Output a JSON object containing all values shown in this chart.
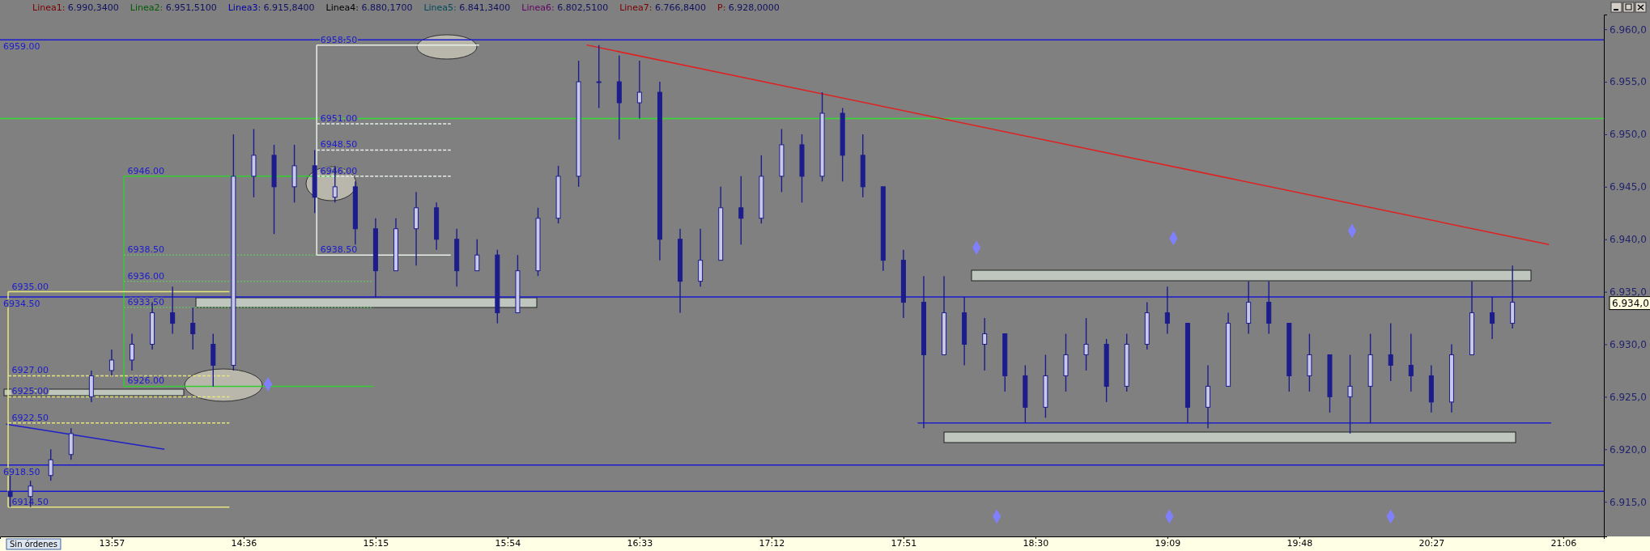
{
  "chart_data": {
    "type": "candlestick",
    "color": "#1c1c8c",
    "x": [
      13.45,
      13.55,
      13.65,
      13.75,
      13.85,
      13.95,
      14.05,
      14.15,
      14.25,
      14.35,
      14.45,
      14.55,
      14.65,
      14.75,
      14.85,
      14.95,
      15.05,
      15.15,
      15.25,
      15.35,
      15.45,
      15.55,
      15.65,
      15.75,
      15.85,
      15.95,
      16.05,
      16.15,
      16.25,
      16.35,
      16.45,
      16.55,
      16.65,
      16.75,
      16.85,
      16.95,
      17.05,
      17.15,
      17.25,
      17.35,
      17.45,
      17.55,
      17.65,
      17.75,
      17.85,
      17.95,
      18.05,
      18.15,
      18.25,
      18.35,
      18.45,
      18.55,
      18.65,
      18.75,
      18.85,
      18.95,
      19.05,
      19.15,
      19.25,
      19.35,
      19.45,
      19.55,
      19.65,
      19.75,
      19.85,
      19.95,
      20.05,
      20.15,
      20.25,
      20.35,
      20.45,
      20.55,
      20.65,
      20.75,
      20.85
    ],
    "ohlc": [
      [
        6916,
        6917.5,
        6914.5,
        6915.5
      ],
      [
        6915.5,
        6917,
        6914.5,
        6916.5
      ],
      [
        6917.5,
        6920,
        6917,
        6919
      ],
      [
        6919.5,
        6922,
        6919,
        6921.5
      ],
      [
        6925,
        6927.5,
        6924.5,
        6927
      ],
      [
        6927.5,
        6929.5,
        6927,
        6928.5
      ],
      [
        6928.5,
        6931,
        6927.5,
        6930
      ],
      [
        6930,
        6934,
        6929.5,
        6933
      ],
      [
        6933,
        6935.5,
        6931,
        6932
      ],
      [
        6932,
        6933.5,
        6929.5,
        6931
      ],
      [
        6930,
        6931,
        6926,
        6928
      ],
      [
        6928,
        6950,
        6927.5,
        6946
      ],
      [
        6946,
        6950.5,
        6944,
        6948
      ],
      [
        6948,
        6949,
        6940.5,
        6945
      ],
      [
        6945,
        6949,
        6943.5,
        6947
      ],
      [
        6947,
        6948.5,
        6942.5,
        6944
      ],
      [
        6944,
        6947,
        6943.5,
        6945
      ],
      [
        6945,
        6945.5,
        6939.5,
        6941
      ],
      [
        6941,
        6942,
        6934.5,
        6937
      ],
      [
        6937,
        6942,
        6937,
        6941
      ],
      [
        6941,
        6944.5,
        6937.5,
        6943
      ],
      [
        6943,
        6943.5,
        6939,
        6940
      ],
      [
        6940,
        6941,
        6935.5,
        6937
      ],
      [
        6937,
        6940,
        6937,
        6938.5
      ],
      [
        6938.5,
        6939,
        6932,
        6933
      ],
      [
        6933,
        6938.5,
        6933,
        6937
      ],
      [
        6937,
        6943,
        6936.5,
        6942
      ],
      [
        6942,
        6947,
        6941.5,
        6946
      ],
      [
        6946,
        6957,
        6945,
        6955
      ],
      [
        6955,
        6958.5,
        6952.5,
        6955
      ],
      [
        6955,
        6957.5,
        6949.5,
        6953
      ],
      [
        6953,
        6957,
        6951.5,
        6954
      ],
      [
        6954,
        6955,
        6938,
        6940
      ],
      [
        6940,
        6941,
        6933,
        6936
      ],
      [
        6936,
        6941,
        6935.5,
        6938
      ],
      [
        6938,
        6945,
        6938,
        6943
      ],
      [
        6943,
        6946,
        6939.5,
        6942
      ],
      [
        6942,
        6948,
        6941.5,
        6946
      ],
      [
        6946,
        6950.5,
        6944.5,
        6949
      ],
      [
        6949,
        6950,
        6943.5,
        6946
      ],
      [
        6946,
        6954,
        6945.5,
        6952
      ],
      [
        6952,
        6952.5,
        6945.5,
        6948
      ],
      [
        6948,
        6950,
        6944,
        6945
      ],
      [
        6945,
        6945,
        6937,
        6938
      ],
      [
        6938,
        6939,
        6932.5,
        6934
      ],
      [
        6934,
        6936.5,
        6922,
        6929
      ],
      [
        6929,
        6936.5,
        6929,
        6933
      ],
      [
        6933,
        6934.5,
        6928,
        6930
      ],
      [
        6930,
        6932.5,
        6927.5,
        6931
      ],
      [
        6931,
        6931,
        6925.5,
        6927
      ],
      [
        6927,
        6928,
        6922.5,
        6924
      ],
      [
        6924,
        6929,
        6923,
        6927
      ],
      [
        6927,
        6931,
        6925.5,
        6929
      ],
      [
        6929,
        6932.5,
        6927.5,
        6930
      ],
      [
        6930,
        6930.5,
        6924.5,
        6926
      ],
      [
        6926,
        6931,
        6925.5,
        6930
      ],
      [
        6930,
        6934,
        6929.5,
        6933
      ],
      [
        6933,
        6935.5,
        6931,
        6932
      ],
      [
        6932,
        6932,
        6922.5,
        6924
      ],
      [
        6924,
        6928,
        6922,
        6926
      ],
      [
        6926,
        6933,
        6926,
        6932
      ],
      [
        6932,
        6936,
        6931,
        6934
      ],
      [
        6934,
        6936,
        6931,
        6932
      ],
      [
        6932,
        6932,
        6925.5,
        6927
      ],
      [
        6927,
        6931,
        6925.5,
        6929
      ],
      [
        6929,
        6929,
        6923.5,
        6925
      ],
      [
        6925,
        6929,
        6921.5,
        6926
      ],
      [
        6926,
        6931,
        6922.5,
        6929
      ],
      [
        6929,
        6932,
        6926.5,
        6928
      ],
      [
        6928,
        6931,
        6925.5,
        6927
      ],
      [
        6927,
        6928,
        6923.5,
        6924.5
      ],
      [
        6924.5,
        6930,
        6923.5,
        6929
      ],
      [
        6929,
        6936,
        6929,
        6933
      ],
      [
        6933,
        6934.5,
        6930.5,
        6932
      ],
      [
        6932,
        6937.5,
        6931.5,
        6934
      ]
    ],
    "series": [
      {
        "type": "line",
        "color": "#e02020",
        "x": [
          16.29,
          21.03
        ],
        "values": [
          6958.5,
          6939.5
        ]
      },
      {
        "type": "line",
        "color": "#2020c8",
        "x": [
          13.43,
          14.21
        ],
        "values": [
          6922.4,
          6920
        ]
      },
      {
        "type": "line",
        "color": "#2020c8",
        "x": [
          17.92,
          21.04
        ],
        "values": [
          6922.5,
          6922.5
        ]
      },
      {
        "type": "line",
        "color": "#33cc33",
        "x": [
          14.01,
          14.01
        ],
        "values": [
          6946,
          6926
        ]
      },
      {
        "type": "line",
        "color": "#33cc33",
        "x": [
          14.01,
          15.06
        ],
        "values": [
          6946,
          6946
        ]
      },
      {
        "type": "line",
        "color": "#66bb66",
        "line_style": "dotted",
        "x": [
          14.01,
          14.96
        ],
        "values": [
          6938.5,
          6938.5
        ]
      },
      {
        "type": "line",
        "color": "#66bb66",
        "line_style": "dotted",
        "x": [
          14.01,
          15.24
        ],
        "values": [
          6936,
          6936
        ]
      },
      {
        "type": "line",
        "color": "#66bb66",
        "line_style": "dotted",
        "x": [
          14.01,
          15.24
        ],
        "values": [
          6933.5,
          6933.5
        ]
      },
      {
        "type": "line",
        "color": "#33cc33",
        "x": [
          14.01,
          15.24
        ],
        "values": [
          6926,
          6926
        ]
      },
      {
        "type": "line",
        "color": "#e6e680",
        "x": [
          13.44,
          13.44
        ],
        "values": [
          6935,
          6914.5
        ]
      },
      {
        "type": "line",
        "color": "#e6e680",
        "x": [
          13.44,
          14.53
        ],
        "values": [
          6935,
          6935
        ]
      },
      {
        "type": "line",
        "color": "#e6e680",
        "line_style": "dashed",
        "x": [
          13.44,
          14.53
        ],
        "values": [
          6927,
          6927
        ]
      },
      {
        "type": "line",
        "color": "#e6e680",
        "line_style": "dashed",
        "x": [
          13.44,
          14.53
        ],
        "values": [
          6925,
          6925
        ]
      },
      {
        "type": "line",
        "color": "#e6e680",
        "line_style": "dashed",
        "x": [
          13.44,
          14.53
        ],
        "values": [
          6922.5,
          6922.5
        ]
      },
      {
        "type": "line",
        "color": "#e6e680",
        "x": [
          13.44,
          14.53
        ],
        "values": [
          6914.5,
          6914.5
        ]
      },
      {
        "type": "line",
        "color": "#e8f0e8",
        "x": [
          14.96,
          14.96
        ],
        "values": [
          6958.5,
          6938.5
        ]
      },
      {
        "type": "line",
        "color": "#e8f0e8",
        "x": [
          14.96,
          15.76
        ],
        "values": [
          6958.5,
          6958.5
        ]
      },
      {
        "type": "line",
        "color": "#e8f0e8",
        "line_style": "dashed",
        "x": [
          14.96,
          15.62
        ],
        "values": [
          6951,
          6951
        ]
      },
      {
        "type": "line",
        "color": "#e8f0e8",
        "line_style": "dashed",
        "x": [
          14.96,
          15.62
        ],
        "values": [
          6948.5,
          6948.5
        ]
      },
      {
        "type": "line",
        "color": "#e8f0e8",
        "line_style": "dashed",
        "x": [
          14.96,
          15.62
        ],
        "values": [
          6946,
          6946
        ]
      },
      {
        "type": "line",
        "color": "#e8f0e8",
        "x": [
          14.96,
          15.62
        ],
        "values": [
          6938.5,
          6938.5
        ]
      },
      {
        "type": "scatter",
        "color": "#8080ff",
        "marker": "diamond",
        "x": [
          14.72,
          18.21,
          19.18,
          20.06,
          18.31,
          19.16,
          20.25
        ],
        "values": [
          6926.2,
          6939.2,
          6940.1,
          6940.8,
          6913.6,
          6913.6,
          6913.6
        ]
      }
    ],
    "xlim": [
      13.4,
      21.3
    ],
    "ylim": [
      6911.7,
      6961.4
    ],
    "xticks": [
      {
        "value": 13.95,
        "label": "13:57"
      },
      {
        "value": 14.6,
        "label": "14:36"
      },
      {
        "value": 15.25,
        "label": "15:15"
      },
      {
        "value": 15.9,
        "label": "15:54"
      },
      {
        "value": 16.55,
        "label": "16:33"
      },
      {
        "value": 17.2,
        "label": "17:12"
      },
      {
        "value": 17.85,
        "label": "17:51"
      },
      {
        "value": 18.5,
        "label": "18:30"
      },
      {
        "value": 19.15,
        "label": "19:09"
      },
      {
        "value": 19.8,
        "label": "19:48"
      },
      {
        "value": 20.45,
        "label": "20:27"
      },
      {
        "value": 21.1,
        "label": "21:06"
      }
    ],
    "yticks": [
      {
        "value": 6915,
        "label": "6.915,0"
      },
      {
        "value": 6920,
        "label": "6.920,0"
      },
      {
        "value": 6925,
        "label": "6.925,0"
      },
      {
        "value": 6930,
        "label": "6.930,0"
      },
      {
        "value": 6935,
        "label": "6.935,0"
      },
      {
        "value": 6940,
        "label": "6.940,0"
      },
      {
        "value": 6945,
        "label": "6.945,0"
      },
      {
        "value": 6950,
        "label": "6.950,0"
      },
      {
        "value": 6955,
        "label": "6.955,0"
      },
      {
        "value": 6960,
        "label": "6.960,0"
      }
    ],
    "ref_lines": [
      {
        "axis": "y",
        "value": 6959,
        "label": "6959.00",
        "color": "#1a1ad0"
      },
      {
        "axis": "y",
        "value": 6951.5,
        "color": "#33dd33"
      },
      {
        "axis": "y",
        "value": 6934.5,
        "label": "6934.50",
        "color": "#1a1ad0"
      },
      {
        "axis": "y",
        "value": 6918.5,
        "label": "6918.50",
        "color": "#1a1ad0"
      },
      {
        "axis": "y",
        "value": 6916,
        "color": "#1a1ad0"
      }
    ],
    "annotations": [
      "Linea1: 6.990,3400",
      "Linea2: 6.951,5100",
      "Linea3: 6.915,8400",
      "Linea4: 6.880,1700",
      "Linea5: 6.841,3400",
      "Linea6: 6.802,5100",
      "Linea7: 6.766,8400",
      "P: 6.928,0000",
      {
        "text": "6958.50",
        "x": 14.97,
        "y": 6958.5
      },
      {
        "text": "6951.00",
        "x": 14.97,
        "y": 6951
      },
      {
        "text": "6948.50",
        "x": 14.97,
        "y": 6948.5
      },
      {
        "text": "6946.00",
        "x": 14.97,
        "y": 6946
      },
      {
        "text": "6938.50",
        "x": 14.97,
        "y": 6938.5
      },
      {
        "text": "6946.00",
        "x": 14.02,
        "y": 6946
      },
      {
        "text": "6938.50",
        "x": 14.02,
        "y": 6938.5
      },
      {
        "text": "6936.00",
        "x": 14.02,
        "y": 6936
      },
      {
        "text": "6933.50",
        "x": 14.02,
        "y": 6933.5
      },
      {
        "text": "6926.00",
        "x": 14.02,
        "y": 6926
      },
      {
        "text": "6935.00",
        "x": 13.45,
        "y": 6935
      },
      {
        "text": "6927.00",
        "x": 13.45,
        "y": 6927
      },
      {
        "text": "6925.00",
        "x": 13.45,
        "y": 6925
      },
      {
        "text": "6922.50",
        "x": 13.45,
        "y": 6922.5
      },
      {
        "text": "6914.50",
        "x": 13.45,
        "y": 6914.5
      },
      "6.934,0",
      "Sin órdenes"
    ]
  }
}
